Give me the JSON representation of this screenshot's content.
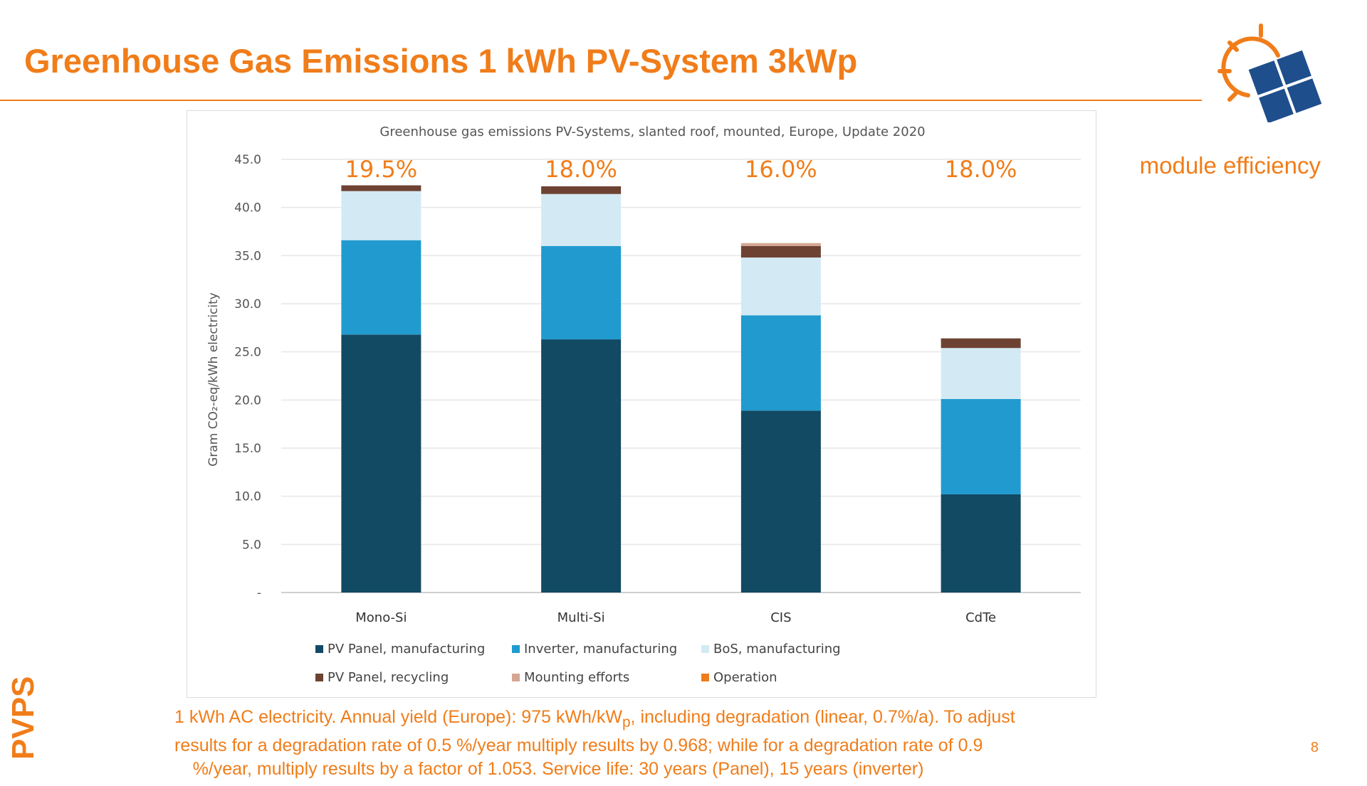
{
  "slide": {
    "title": "Greenhouse Gas Emissions 1 kWh PV-System 3kWp",
    "side_label": "module efficiency",
    "brand_vertical": "PVPS",
    "page_number": "8",
    "footnote": {
      "l1a": "1 kWh AC electricity. Annual yield (Europe): 975 kWh/kW",
      "l1sub": "p",
      "l1b": ", including degradation (linear, 0.7%/a). To adjust",
      "l2": "results for a degradation rate of 0.5 %/year multiply results by 0.968; while for a degradation rate of 0.9",
      "l3": "%/year, multiply results by a factor of 1.053. Service life: 30 years (Panel), 15 years (inverter)"
    },
    "colors": {
      "accent": "#f07d1a",
      "logo_blue": "#1f4e8c"
    }
  },
  "chart_data": {
    "type": "bar",
    "stacked": true,
    "title": "Greenhouse gas emissions PV-Systems, slanted roof, mounted, Europe, Update 2020",
    "ylabel": "Gram CO₂-eq/kWh electricity",
    "ylim": [
      0,
      45
    ],
    "yticks": [
      "-",
      "5.0",
      "10.0",
      "15.0",
      "20.0",
      "25.0",
      "30.0",
      "35.0",
      "40.0",
      "45.0"
    ],
    "grid": true,
    "legend_position": "bottom",
    "categories": [
      "Mono-Si",
      "Multi-Si",
      "CIS",
      "CdTe"
    ],
    "annotations": [
      "19.5%",
      "18.0%",
      "16.0%",
      "18.0%"
    ],
    "series": [
      {
        "name": "PV Panel, manufacturing",
        "color": "#124a64",
        "values": [
          26.8,
          26.3,
          18.9,
          10.2
        ]
      },
      {
        "name": "Inverter, manufacturing",
        "color": "#219bcf",
        "values": [
          9.8,
          9.7,
          9.9,
          9.9
        ]
      },
      {
        "name": "BoS, manufacturing",
        "color": "#d3eaf5",
        "values": [
          5.1,
          5.4,
          6.0,
          5.3
        ]
      },
      {
        "name": "PV Panel, recycling",
        "color": "#6e4232",
        "values": [
          0.6,
          0.8,
          1.2,
          1.0
        ]
      },
      {
        "name": "Mounting efforts",
        "color": "#d6a693",
        "values": [
          0.0,
          0.0,
          0.3,
          0.0
        ]
      },
      {
        "name": "Operation",
        "color": "#f07d1a",
        "values": [
          0.0,
          0.0,
          0.0,
          0.0
        ]
      }
    ]
  }
}
